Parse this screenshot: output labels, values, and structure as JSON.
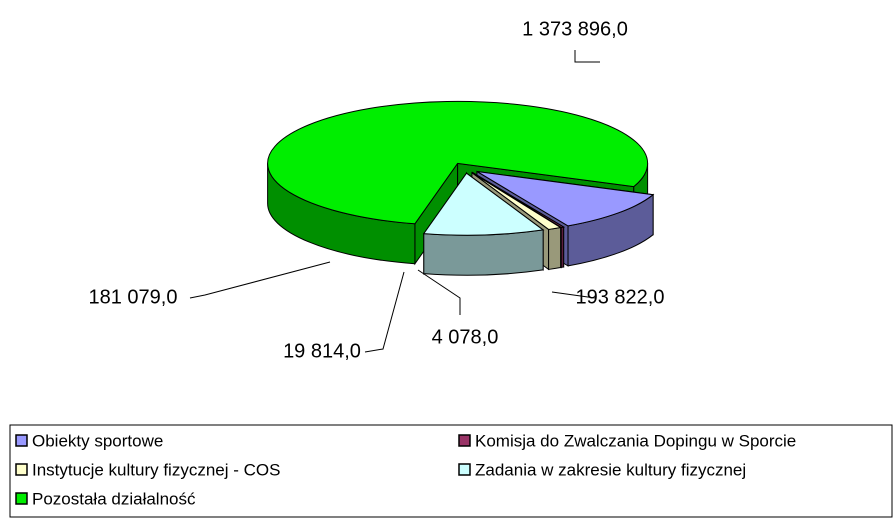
{
  "chart_data": {
    "type": "pie",
    "categories": [
      "Obiekty sportowe",
      "Komisja do Zwalczania Dopingu w Sporcie",
      "Instytucje kultury fizycznej - COS",
      "Zadania w zakresie kultury fizycznej",
      "Pozostała działalność"
    ],
    "values": [
      193822,
      4078,
      19814,
      181079,
      1373896
    ],
    "value_labels": [
      "193 822,0",
      "4 078,0",
      "19 814,0",
      "181 079,0",
      "1 373 896,0"
    ],
    "colors": [
      "#9999ff",
      "#993366",
      "#ffffcc",
      "#ccffff",
      "#00ee00"
    ],
    "legend": "bottom"
  }
}
